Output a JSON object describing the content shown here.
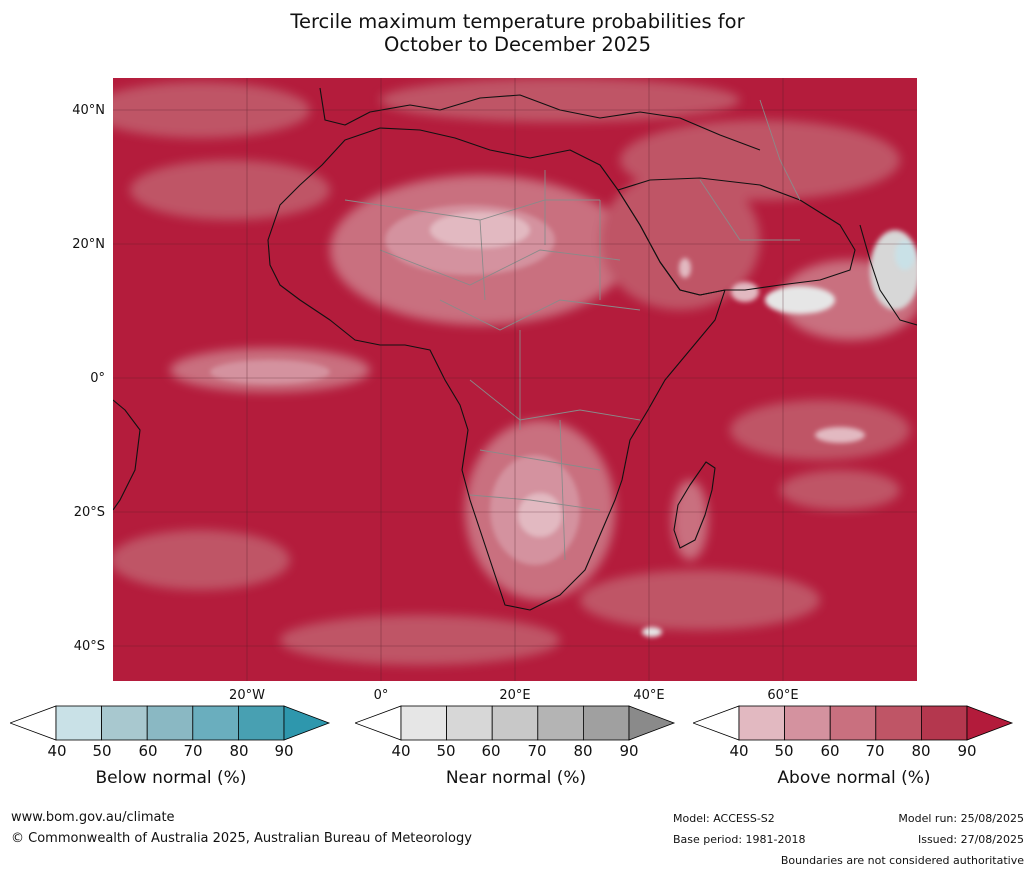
{
  "title": {
    "line1": "Tercile maximum temperature probabilities for",
    "line2": "October to December 2025"
  },
  "map": {
    "lat_labels": [
      "40°N",
      "20°N",
      "0°",
      "20°S",
      "40°S"
    ],
    "lon_labels": [
      "20°W",
      "0°",
      "20°E",
      "40°E",
      "60°E"
    ],
    "extent": {
      "lon": [
        -40,
        80
      ],
      "lat": [
        -45,
        45
      ]
    },
    "ocean_color": "#b41c3c"
  },
  "legend": {
    "ticks": [
      "40",
      "50",
      "60",
      "70",
      "80",
      "90"
    ],
    "below": {
      "title": "Below normal (%)",
      "colors": [
        "#ffffff",
        "#c9e1e7",
        "#a8c8cf",
        "#8ab8c3",
        "#6aaebe",
        "#48a0b2",
        "#2e97ad"
      ]
    },
    "near": {
      "title": "Near normal (%)",
      "colors": [
        "#ffffff",
        "#e6e6e6",
        "#d7d7d7",
        "#c8c8c8",
        "#b4b4b4",
        "#a0a0a0",
        "#8a8a8a"
      ]
    },
    "above": {
      "title": "Above normal (%)",
      "colors": [
        "#ffffff",
        "#e2b9c1",
        "#d4929f",
        "#c9707f",
        "#bf5566",
        "#b4374e",
        "#b31b3b"
      ]
    }
  },
  "footer": {
    "website": "www.bom.gov.au/climate",
    "copyright": "© Commonwealth of Australia 2025, Australian Bureau of Meteorology",
    "model": "Model: ACCESS-S2",
    "base_period": "Base period: 1981-2018",
    "model_run": "Model run: 25/08/2025",
    "issued": "Issued: 27/08/2025",
    "disclaimer": "Boundaries are not considered authoritative"
  }
}
